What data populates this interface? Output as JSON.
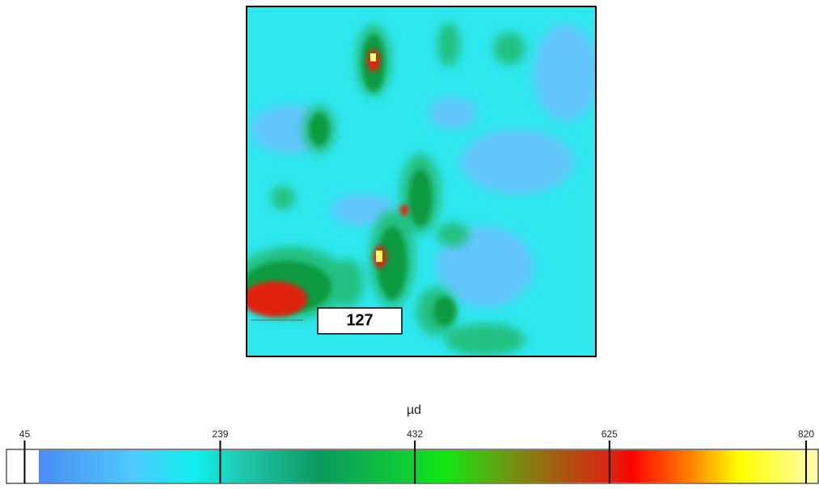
{
  "chart_data": {
    "type": "colorbar",
    "map_label": "127",
    "unit": "µd",
    "lim": [
      27,
      832
    ],
    "ticks": [
      45,
      239,
      432,
      625,
      820
    ]
  }
}
